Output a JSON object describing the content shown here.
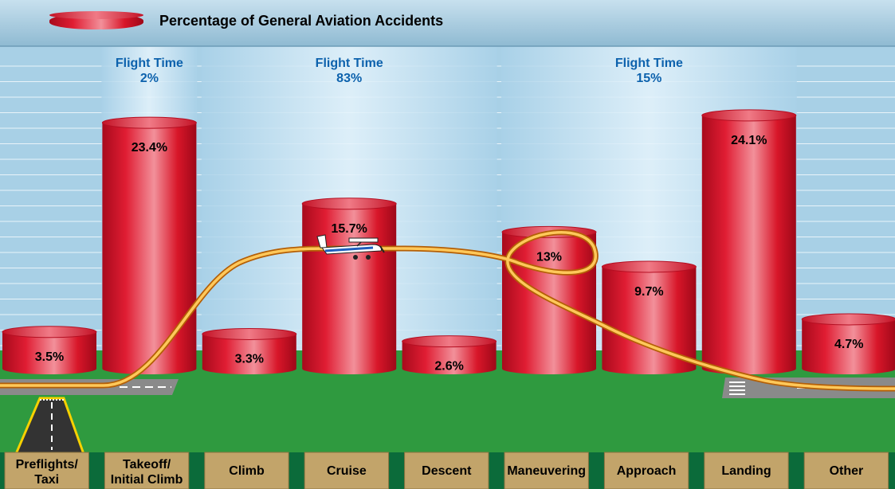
{
  "chart_data": {
    "type": "bar",
    "title": "Percentage of General Aviation Accidents",
    "categories": [
      "Preflights/ Taxi",
      "Takeoff/ Initial Climb",
      "Climb",
      "Cruise",
      "Descent",
      "Maneuvering",
      "Approach",
      "Landing",
      "Other"
    ],
    "series": [
      {
        "name": "Percentage of General Aviation Accidents",
        "values": [
          3.5,
          23.4,
          3.3,
          15.7,
          2.6,
          13,
          9.7,
          24.1,
          4.7
        ]
      }
    ],
    "value_labels": [
      "3.5%",
      "23.4%",
      "3.3%",
      "15.7%",
      "2.6%",
      "13%",
      "9.7%",
      "24.1%",
      "4.7%"
    ],
    "flight_time_bands": [
      {
        "label": "Flight Time",
        "value": "2%",
        "covers": [
          "Takeoff/ Initial Climb"
        ]
      },
      {
        "label": "Flight Time",
        "value": "83%",
        "covers": [
          "Climb",
          "Cruise",
          "Descent"
        ]
      },
      {
        "label": "Flight Time",
        "value": "15%",
        "covers": [
          "Maneuvering",
          "Approach",
          "Landing"
        ]
      }
    ],
    "legend_position": "top-left",
    "grid": true,
    "colors": {
      "bar": "#d4142a",
      "band": "#d6ecf8",
      "ground": "#2f9a3f",
      "path": "#f5a623"
    }
  }
}
